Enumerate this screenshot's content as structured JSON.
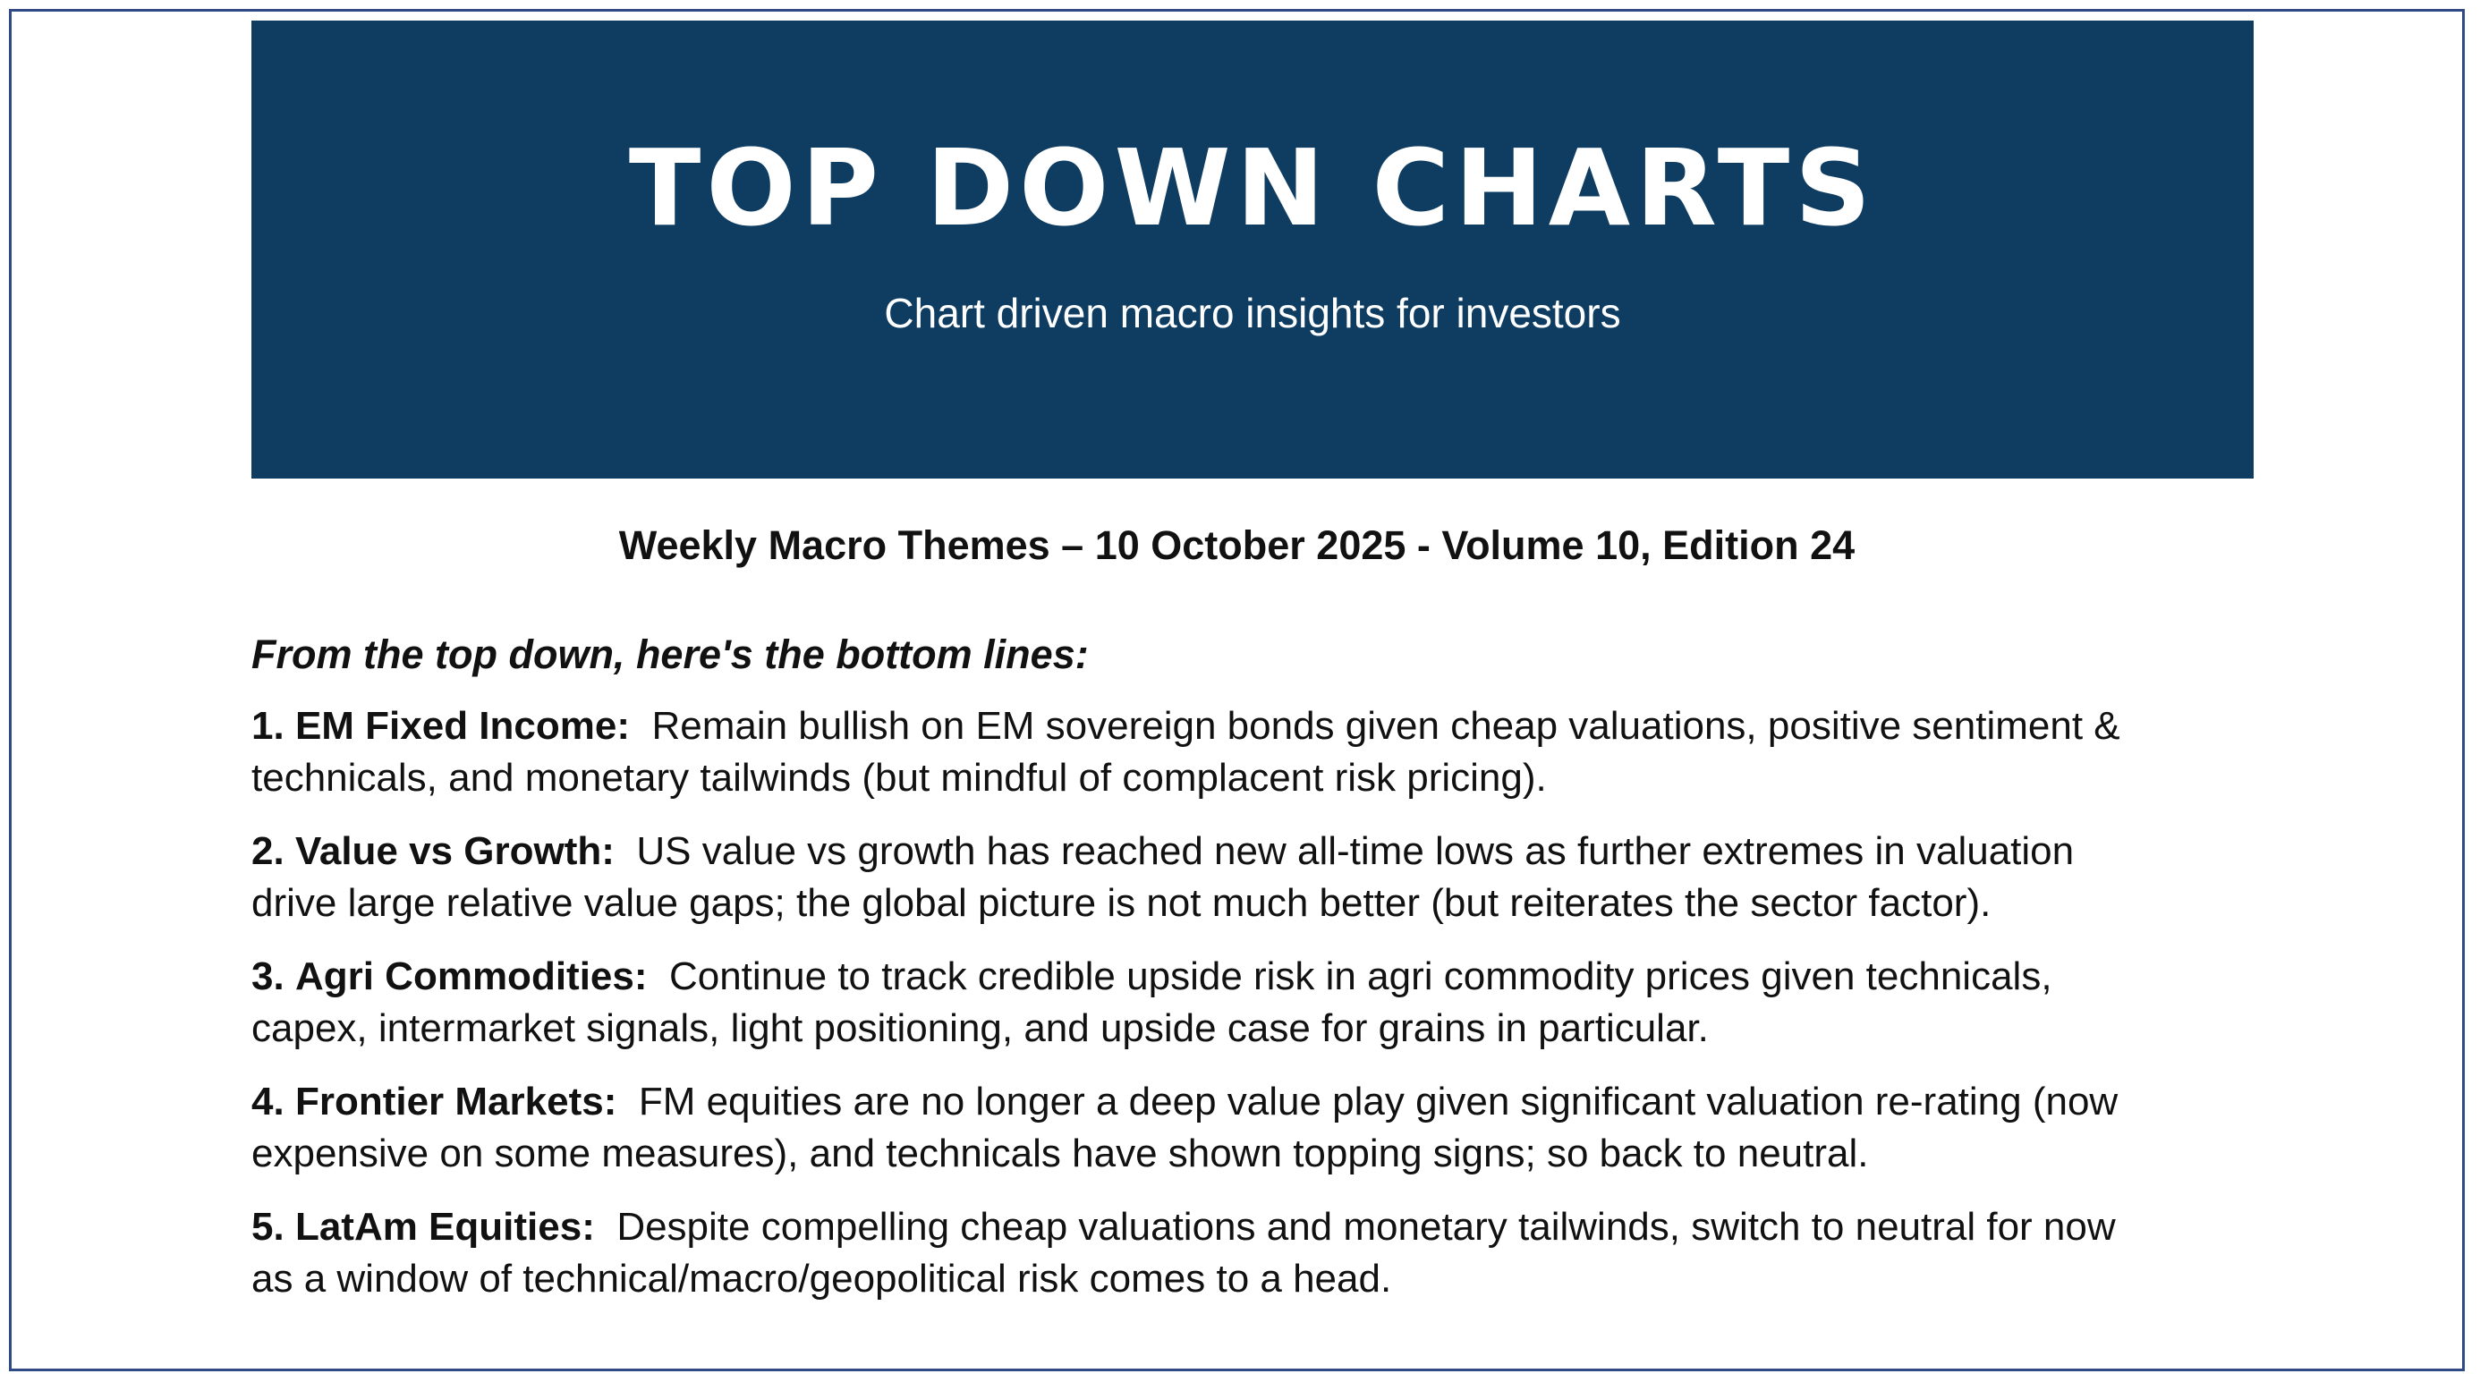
{
  "header": {
    "title": "TOP DOWN CHARTS",
    "subtitle": "Chart driven macro insights for investors"
  },
  "edition": "Weekly Macro Themes – 10 October 2025 - Volume 10, Edition 24",
  "intro": "From the top down, here's the bottom lines:",
  "points": [
    {
      "num": "1.",
      "title": "EM Fixed Income:",
      "line1": "Remain bullish on EM sovereign bonds given cheap valuations, positive sentiment &",
      "line2": "technicals, and monetary tailwinds (but mindful of complacent risk pricing)."
    },
    {
      "num": "2.",
      "title": "Value vs Growth:",
      "line1": "US value vs growth has reached new all-time lows as further extremes in valuation",
      "line2": "drive large relative value gaps; the global picture is not much better (but reiterates the sector factor)."
    },
    {
      "num": "3.",
      "title": "Agri Commodities:",
      "line1": "Continue to track credible upside risk in agri commodity prices given technicals,",
      "line2": "capex, intermarket signals, light positioning, and upside case for grains in particular."
    },
    {
      "num": "4.",
      "title": "Frontier Markets:",
      "line1": "FM equities are no longer a deep value play given significant valuation re-rating (now",
      "line2": "expensive on some measures), and technicals have shown topping signs; so back to neutral."
    },
    {
      "num": "5.",
      "title": "LatAm Equities:",
      "line1": "Despite compelling cheap valuations and monetary tailwinds, switch to neutral for now",
      "line2": "as a window of technical/macro/geopolitical risk comes to a head."
    }
  ]
}
